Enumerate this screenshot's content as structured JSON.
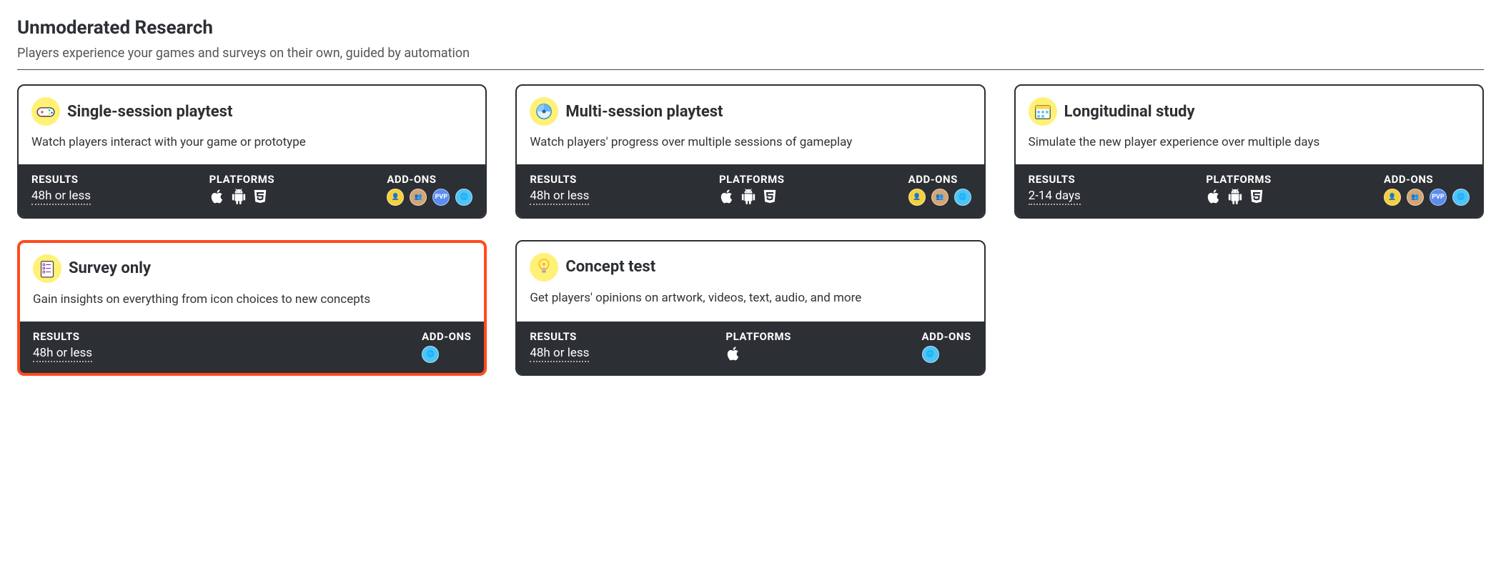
{
  "section": {
    "title": "Unmoderated Research",
    "subtitle": "Players experience your games and surveys on their own, guided by automation"
  },
  "footer_labels": {
    "results": "RESULTS",
    "platforms": "PLATFORMS",
    "addons": "ADD-ONS"
  },
  "cards": [
    {
      "id": "single-session-playtest",
      "title": "Single-session playtest",
      "description": "Watch players interact with your game or prototype",
      "results": "48h or less",
      "selected": false,
      "icon": "gamepad",
      "icon_bg": "#fff176",
      "show_platforms": true,
      "platforms": [
        "apple",
        "android",
        "html5"
      ],
      "addons": [
        {
          "name": "addon-1",
          "bg": "#f4d03f",
          "label": "👤"
        },
        {
          "name": "addon-2",
          "bg": "#d4a574",
          "label": "👥"
        },
        {
          "name": "addon-pvp",
          "bg": "#5b8def",
          "label": "PVP"
        },
        {
          "name": "addon-4",
          "bg": "#4fc3f7",
          "label": "🌐"
        }
      ]
    },
    {
      "id": "multi-session-playtest",
      "title": "Multi-session playtest",
      "description": "Watch players' progress over multiple sessions of gameplay",
      "results": "48h or less",
      "selected": false,
      "icon": "sessions",
      "icon_bg": "#fff176",
      "show_platforms": true,
      "platforms": [
        "apple",
        "android",
        "html5"
      ],
      "addons": [
        {
          "name": "addon-1",
          "bg": "#f4d03f",
          "label": "👤"
        },
        {
          "name": "addon-2",
          "bg": "#d4a574",
          "label": "👥"
        },
        {
          "name": "addon-4",
          "bg": "#4fc3f7",
          "label": "🌐"
        }
      ]
    },
    {
      "id": "longitudinal-study",
      "title": "Longitudinal study",
      "description": "Simulate the new player experience over multiple days",
      "results": "2-14 days",
      "selected": false,
      "icon": "calendar",
      "icon_bg": "#fff176",
      "show_platforms": true,
      "platforms": [
        "apple",
        "android",
        "html5"
      ],
      "addons": [
        {
          "name": "addon-1",
          "bg": "#f4d03f",
          "label": "👤"
        },
        {
          "name": "addon-2",
          "bg": "#d4a574",
          "label": "👥"
        },
        {
          "name": "addon-pvp",
          "bg": "#5b8def",
          "label": "PVP"
        },
        {
          "name": "addon-4",
          "bg": "#4fc3f7",
          "label": "🌐"
        }
      ]
    },
    {
      "id": "survey-only",
      "title": "Survey only",
      "description": "Gain insights on everything from icon choices to new concepts",
      "results": "48h or less",
      "selected": true,
      "icon": "survey",
      "icon_bg": "#fff176",
      "show_platforms": false,
      "platforms": [],
      "addons": [
        {
          "name": "addon-4",
          "bg": "#4fc3f7",
          "label": "🌐"
        }
      ]
    },
    {
      "id": "concept-test",
      "title": "Concept test",
      "description": "Get players' opinions on artwork, videos, text, audio, and more",
      "results": "48h or less",
      "selected": false,
      "icon": "lightbulb",
      "icon_bg": "#fff176",
      "show_platforms": true,
      "platforms": [
        "apple"
      ],
      "addons": [
        {
          "name": "addon-4",
          "bg": "#4fc3f7",
          "label": "🌐"
        }
      ]
    }
  ],
  "colors": {
    "card_border": "#2c2f33",
    "selected_border": "#ff4b1f",
    "footer_bg": "#2c2f33",
    "icon_circle_bg": "#fff176"
  }
}
